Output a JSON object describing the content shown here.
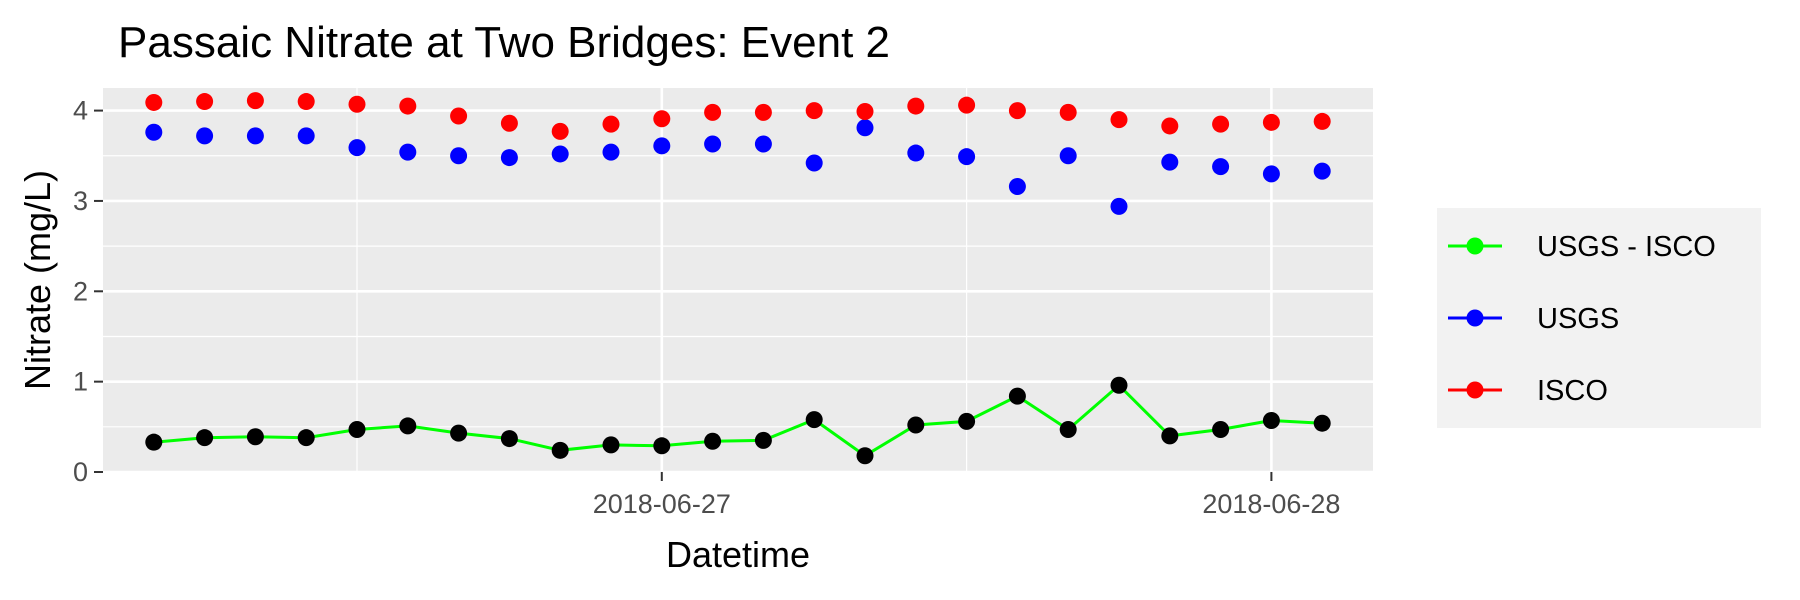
{
  "chart_data": {
    "type": "scatter",
    "title": "Passaic Nitrate at Two Bridges: Event 2",
    "xlabel": "Datetime",
    "ylabel": "Nitrate (mg/L)",
    "ylim": [
      0,
      4.25
    ],
    "yticks": [
      0,
      1,
      2,
      3,
      4
    ],
    "xlim": [
      "2018-06-26T02:00",
      "2018-06-28T04:00"
    ],
    "xticks": [
      {
        "value": "2018-06-27T00:00",
        "label": "2018-06-27"
      },
      {
        "value": "2018-06-28T00:00",
        "label": "2018-06-28"
      }
    ],
    "grid": true,
    "legend_position": "right",
    "x": [
      "2018-06-26T04:00",
      "2018-06-26T06:00",
      "2018-06-26T08:00",
      "2018-06-26T10:00",
      "2018-06-26T12:00",
      "2018-06-26T14:00",
      "2018-06-26T16:00",
      "2018-06-26T18:00",
      "2018-06-26T20:00",
      "2018-06-26T22:00",
      "2018-06-27T00:00",
      "2018-06-27T02:00",
      "2018-06-27T04:00",
      "2018-06-27T06:00",
      "2018-06-27T08:00",
      "2018-06-27T10:00",
      "2018-06-27T12:00",
      "2018-06-27T14:00",
      "2018-06-27T16:00",
      "2018-06-27T18:00",
      "2018-06-27T20:00",
      "2018-06-27T22:00",
      "2018-06-28T00:00",
      "2018-06-28T02:00"
    ],
    "series": [
      {
        "name": "USGS - ISCO",
        "color": "#00ff00",
        "marker_color": "#000000",
        "style": "line+points",
        "values": [
          0.33,
          0.38,
          0.39,
          0.38,
          0.47,
          0.51,
          0.43,
          0.37,
          0.24,
          0.3,
          0.29,
          0.34,
          0.35,
          0.58,
          0.18,
          0.52,
          0.56,
          0.84,
          0.47,
          0.96,
          0.4,
          0.47,
          0.57,
          0.54
        ]
      },
      {
        "name": "USGS",
        "color": "#0000ff",
        "style": "points",
        "values": [
          3.76,
          3.72,
          3.72,
          3.72,
          3.59,
          3.54,
          3.5,
          3.48,
          3.52,
          3.54,
          3.61,
          3.63,
          3.63,
          3.42,
          3.81,
          3.53,
          3.49,
          3.16,
          3.5,
          2.94,
          3.43,
          3.38,
          3.3,
          3.33
        ]
      },
      {
        "name": "ISCO",
        "color": "#ff0000",
        "style": "points",
        "values": [
          4.09,
          4.1,
          4.11,
          4.1,
          4.07,
          4.05,
          3.94,
          3.86,
          3.77,
          3.85,
          3.91,
          3.98,
          3.98,
          4.0,
          3.99,
          4.05,
          4.06,
          4.0,
          3.98,
          3.9,
          3.83,
          3.85,
          3.87,
          3.88
        ]
      }
    ],
    "legend": [
      "USGS - ISCO",
      "USGS",
      "ISCO"
    ]
  }
}
